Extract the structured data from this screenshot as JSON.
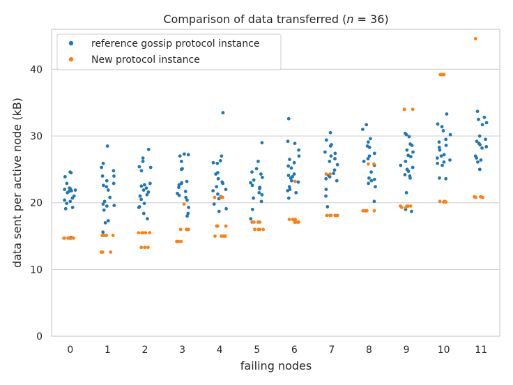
{
  "chart_data": {
    "type": "scatter",
    "title": "Comparison of data transferred ($n=36$)",
    "title_prefix": "Comparison of data transferred (",
    "title_n_var": "n",
    "title_n_eq": " = 36",
    "title_suffix": ")",
    "xlabel": "failing nodes",
    "ylabel": "data sent per active node (kB)",
    "categories": [
      "0",
      "1",
      "2",
      "3",
      "4",
      "5",
      "6",
      "7",
      "8",
      "9",
      "10",
      "11"
    ],
    "ylim": [
      0,
      46
    ],
    "yticks": [
      0,
      10,
      20,
      30,
      40
    ],
    "grid": "horizontal",
    "legend_position": "top-left",
    "series": [
      {
        "name": "reference gossip protocol instance",
        "color": "#1f77b4",
        "values": [
          [
            24.6,
            24.5,
            23.9,
            22.9,
            22.2,
            22.1,
            22.0,
            21.9,
            21.8,
            21.7,
            21.5,
            21.0,
            20.7,
            20.4,
            20.2,
            19.9,
            19.3,
            19.1,
            14.8
          ],
          [
            28.5,
            25.9,
            25.3,
            24.8,
            24.0,
            24.0,
            23.3,
            22.9,
            22.6,
            22.4,
            21.9,
            20.8,
            20.2,
            19.8,
            19.6,
            19.5,
            18.9,
            17.3,
            17.0,
            15.6
          ],
          [
            28.0,
            26.7,
            26.2,
            25.4,
            25.3,
            24.8,
            22.9,
            22.7,
            22.5,
            22.2,
            21.9,
            21.6,
            21.2,
            21.0,
            20.5,
            19.9,
            19.4,
            19.3,
            18.4,
            17.6
          ],
          [
            27.3,
            27.2,
            27.0,
            26.2,
            25.1,
            25.0,
            23.2,
            23.0,
            22.9,
            22.7,
            22.3,
            21.7,
            21.4,
            21.1,
            20.8,
            20.4,
            19.3,
            18.4,
            18.0
          ],
          [
            33.5,
            27.0,
            26.3,
            26.0,
            25.9,
            24.5,
            24.3,
            23.6,
            23.1,
            22.9,
            22.4,
            22.0,
            21.8,
            21.3,
            20.9,
            20.6,
            19.8,
            19.1,
            18.7
          ],
          [
            29.0,
            26.2,
            25.1,
            24.6,
            24.3,
            23.8,
            23.4,
            23.0,
            22.6,
            22.3,
            22.1,
            21.5,
            21.2,
            20.7,
            20.2,
            19.0,
            17.6
          ],
          [
            32.6,
            29.2,
            28.9,
            27.9,
            27.0,
            26.5,
            26.0,
            25.5,
            25.2,
            24.3,
            24.1,
            23.9,
            23.7,
            23.3,
            23.1,
            22.4,
            22.0,
            21.8,
            21.5,
            20.7
          ],
          [
            30.5,
            29.4,
            28.7,
            28.5,
            27.6,
            27.4,
            27.0,
            26.6,
            26.2,
            25.7,
            24.9,
            24.4,
            24.1,
            23.9,
            23.6,
            23.3,
            22.0,
            21.0,
            19.4
          ],
          [
            31.7,
            31.0,
            29.6,
            29.1,
            28.5,
            28.3,
            27.4,
            27.0,
            26.6,
            26.2,
            25.6,
            24.6,
            23.7,
            23.5,
            23.3,
            22.9,
            22.4,
            20.2
          ],
          [
            30.4,
            30.2,
            29.9,
            28.8,
            28.6,
            27.9,
            27.6,
            27.1,
            26.9,
            26.2,
            25.6,
            25.3,
            25.0,
            24.7,
            24.2,
            24.0,
            23.7,
            21.5,
            19.0,
            18.7
          ],
          [
            33.3,
            31.8,
            31.4,
            30.8,
            30.2,
            29.5,
            29.1,
            28.6,
            28.3,
            27.9,
            27.2,
            27.0,
            26.7,
            26.4,
            26.1,
            25.9,
            25.6,
            23.7,
            23.6
          ],
          [
            33.7,
            32.8,
            32.5,
            32.0,
            31.7,
            30.0,
            29.5,
            29.2,
            28.9,
            28.7,
            28.4,
            28.2,
            27.0,
            26.7,
            26.4,
            26.1,
            25.0
          ]
        ]
      },
      {
        "name": "New protocol instance",
        "color": "#ff7f0e",
        "values": [
          [
            14.7,
            14.7,
            14.7,
            14.7,
            14.7,
            14.7,
            14.7
          ],
          [
            15.1,
            15.1,
            15.1,
            15.1,
            15.1,
            12.6,
            12.6,
            12.6
          ],
          [
            15.5,
            15.5,
            15.5,
            15.5,
            15.5,
            13.3,
            13.3,
            13.3,
            13.3
          ],
          [
            19.8,
            16.0,
            16.0,
            16.0,
            16.0,
            16.0,
            14.2,
            14.2,
            14.2
          ],
          [
            20.8,
            20.8,
            20.8,
            16.5,
            16.5,
            16.5,
            16.5,
            15.0,
            15.0,
            15.0,
            15.0
          ],
          [
            17.1,
            17.1,
            17.1,
            17.1,
            16.0,
            16.0,
            16.0,
            16.0,
            16.0
          ],
          [
            23.2,
            17.5,
            17.5,
            17.5,
            17.1,
            17.1,
            17.1,
            17.1,
            17.1
          ],
          [
            24.3,
            24.3,
            18.1,
            18.1,
            18.1,
            18.1,
            18.1,
            18.1
          ],
          [
            25.8,
            25.8,
            18.8,
            18.8,
            18.8,
            18.8,
            18.8,
            18.8
          ],
          [
            34.0,
            34.0,
            34.0,
            19.5,
            19.5,
            19.5,
            19.5,
            19.3,
            19.3
          ],
          [
            39.2,
            39.2,
            39.2,
            39.2,
            20.2,
            20.2,
            20.2,
            20.1,
            20.1
          ],
          [
            44.6,
            20.9,
            20.9,
            20.9,
            20.9,
            20.8,
            20.8
          ]
        ]
      }
    ]
  }
}
